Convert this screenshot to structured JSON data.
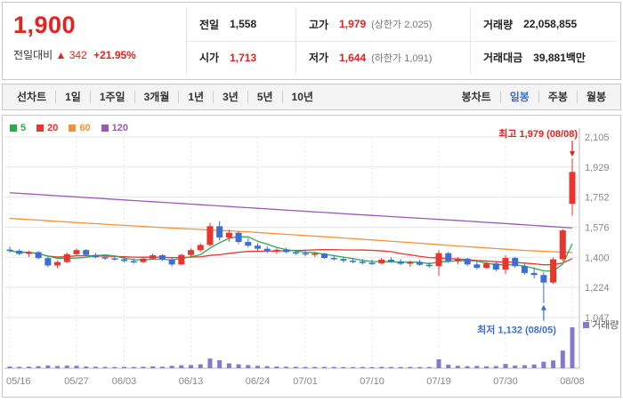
{
  "theme": {
    "red": "#e32222",
    "blue": "#3c6fd6"
  },
  "header": {
    "price": "1,900",
    "change_label": "전일대비",
    "change_arrow": "▲",
    "change_value": "342",
    "change_percent": "+21.95%",
    "stats": {
      "prev_label": "전일",
      "prev_value": "1,558",
      "high_label": "고가",
      "high_value": "1,979",
      "high_limit": "(상한가 2,025)",
      "volume_label": "거래량",
      "volume_value": "22,058,855",
      "open_label": "시가",
      "open_value": "1,713",
      "low_label": "저가",
      "low_value": "1,644",
      "low_limit": "(하한가 1,091)",
      "amount_label": "거래대금",
      "amount_value": "39,881백만"
    }
  },
  "toolbar": {
    "left": [
      "선차트",
      "1일",
      "1주일",
      "3개월",
      "1년",
      "3년",
      "5년",
      "10년"
    ],
    "right_label": "봉차트",
    "right": [
      "일봉",
      "주봉",
      "월봉"
    ],
    "selected": "일봉"
  },
  "legend": [
    {
      "label": "5",
      "color": "#2faa4a"
    },
    {
      "label": "20",
      "color": "#e8352d"
    },
    {
      "label": "60",
      "color": "#f39239"
    },
    {
      "label": "120",
      "color": "#9b59b6"
    }
  ],
  "chart_data": {
    "type": "candlestick",
    "y_ticks": [
      "2,105",
      "1,929",
      "1,752",
      "1,576",
      "1,400",
      "1,224",
      "1,047"
    ],
    "y_values": [
      2105,
      1929,
      1752,
      1576,
      1400,
      1224,
      1047
    ],
    "x_ticks": [
      {
        "label": "05/16",
        "index": 0
      },
      {
        "label": "05/27",
        "index": 7
      },
      {
        "label": "06/03",
        "index": 12
      },
      {
        "label": "06/13",
        "index": 19
      },
      {
        "label": "06/24",
        "index": 26
      },
      {
        "label": "07/01",
        "index": 31
      },
      {
        "label": "07/10",
        "index": 38
      },
      {
        "label": "07/19",
        "index": 45
      },
      {
        "label": "07/30",
        "index": 52
      },
      {
        "label": "08/08",
        "index": 59
      }
    ],
    "annotations": {
      "high": {
        "text": "최고 1,979 (08/08)",
        "index": 59,
        "price": 1979,
        "color": "#e32222"
      },
      "low": {
        "text": "최저 1,132 (08/05)",
        "index": 56,
        "price": 1132,
        "color": "#3c6fd6"
      }
    },
    "volume_legend": "거래량",
    "candles": [
      [
        "05/16",
        1445,
        1462,
        1428,
        1438,
        900000
      ],
      [
        "05/17",
        1438,
        1448,
        1412,
        1420,
        750000
      ],
      [
        "05/20",
        1420,
        1438,
        1402,
        1430,
        820000
      ],
      [
        "05/21",
        1430,
        1436,
        1388,
        1395,
        1100000
      ],
      [
        "05/22",
        1395,
        1402,
        1342,
        1352,
        1500000
      ],
      [
        "05/23",
        1352,
        1382,
        1336,
        1372,
        1200000
      ],
      [
        "05/24",
        1372,
        1428,
        1366,
        1418,
        1400000
      ],
      [
        "05/27",
        1418,
        1452,
        1408,
        1442,
        1300000
      ],
      [
        "05/28",
        1442,
        1448,
        1406,
        1414,
        900000
      ],
      [
        "05/29",
        1414,
        1426,
        1394,
        1400,
        800000
      ],
      [
        "05/30",
        1400,
        1416,
        1384,
        1394,
        700000
      ],
      [
        "05/31",
        1394,
        1410,
        1380,
        1388,
        650000
      ],
      [
        "06/03",
        1388,
        1404,
        1370,
        1378,
        720000
      ],
      [
        "06/04",
        1378,
        1394,
        1362,
        1372,
        680000
      ],
      [
        "06/05",
        1372,
        1400,
        1368,
        1392,
        760000
      ],
      [
        "06/07",
        1392,
        1422,
        1386,
        1412,
        980000
      ],
      [
        "06/10",
        1412,
        1418,
        1378,
        1388,
        850000
      ],
      [
        "06/11",
        1388,
        1398,
        1346,
        1358,
        1300000
      ],
      [
        "06/12",
        1358,
        1420,
        1352,
        1414,
        1600000
      ],
      [
        "06/13",
        1414,
        1452,
        1398,
        1442,
        1700000
      ],
      [
        "06/14",
        1442,
        1482,
        1430,
        1472,
        2100000
      ],
      [
        "06/17",
        1472,
        1602,
        1462,
        1582,
        5200000
      ],
      [
        "06/18",
        1582,
        1612,
        1498,
        1516,
        4300000
      ],
      [
        "06/19",
        1516,
        1562,
        1492,
        1544,
        2600000
      ],
      [
        "06/20",
        1544,
        1552,
        1478,
        1490,
        2100000
      ],
      [
        "06/21",
        1490,
        1512,
        1458,
        1468,
        1700000
      ],
      [
        "06/24",
        1468,
        1482,
        1438,
        1450,
        1300000
      ],
      [
        "06/25",
        1450,
        1464,
        1424,
        1434,
        1100000
      ],
      [
        "06/26",
        1434,
        1452,
        1420,
        1444,
        900000
      ],
      [
        "06/27",
        1444,
        1456,
        1424,
        1430,
        800000
      ],
      [
        "06/28",
        1430,
        1444,
        1414,
        1424,
        750000
      ],
      [
        "07/01",
        1424,
        1440,
        1406,
        1416,
        700000
      ],
      [
        "07/02",
        1416,
        1432,
        1402,
        1422,
        680000
      ],
      [
        "07/03",
        1422,
        1426,
        1390,
        1396,
        720000
      ],
      [
        "07/04",
        1396,
        1412,
        1380,
        1390,
        650000
      ],
      [
        "07/05",
        1390,
        1402,
        1370,
        1380,
        620000
      ],
      [
        "07/08",
        1380,
        1396,
        1364,
        1374,
        600000
      ],
      [
        "07/09",
        1374,
        1390,
        1358,
        1368,
        640000
      ],
      [
        "07/10",
        1368,
        1386,
        1354,
        1364,
        610000
      ],
      [
        "07/11",
        1364,
        1396,
        1358,
        1386,
        700000
      ],
      [
        "07/12",
        1386,
        1400,
        1368,
        1376,
        660000
      ],
      [
        "07/15",
        1376,
        1390,
        1354,
        1362,
        640000
      ],
      [
        "07/16",
        1362,
        1382,
        1344,
        1372,
        690000
      ],
      [
        "07/17",
        1372,
        1386,
        1350,
        1356,
        630000
      ],
      [
        "07/18",
        1356,
        1370,
        1338,
        1348,
        670000
      ],
      [
        "07/19",
        1348,
        1442,
        1292,
        1424,
        4800000
      ],
      [
        "07/22",
        1424,
        1432,
        1368,
        1378,
        1900000
      ],
      [
        "07/23",
        1378,
        1402,
        1360,
        1392,
        1300000
      ],
      [
        "07/24",
        1392,
        1396,
        1348,
        1358,
        1100000
      ],
      [
        "07/25",
        1358,
        1380,
        1328,
        1338,
        1250000
      ],
      [
        "07/26",
        1338,
        1372,
        1332,
        1364,
        1000000
      ],
      [
        "07/29",
        1364,
        1376,
        1318,
        1328,
        1150000
      ],
      [
        "07/30",
        1328,
        1412,
        1302,
        1396,
        2300000
      ],
      [
        "07/31",
        1396,
        1402,
        1338,
        1348,
        1400000
      ],
      [
        "08/01",
        1348,
        1362,
        1298,
        1308,
        1600000
      ],
      [
        "08/02",
        1308,
        1342,
        1276,
        1296,
        2000000
      ],
      [
        "08/05",
        1296,
        1312,
        1132,
        1252,
        3500000
      ],
      [
        "08/06",
        1252,
        1398,
        1244,
        1388,
        4200000
      ],
      [
        "08/07",
        1388,
        1566,
        1376,
        1558,
        9500000
      ],
      [
        "08/08",
        1713,
        1979,
        1644,
        1900,
        22058855
      ]
    ],
    "ma60_points": [
      [
        0,
        1628
      ],
      [
        8,
        1600
      ],
      [
        16,
        1574
      ],
      [
        24,
        1552
      ],
      [
        32,
        1524
      ],
      [
        40,
        1494
      ],
      [
        48,
        1462
      ],
      [
        54,
        1440
      ],
      [
        59,
        1428
      ]
    ],
    "ma120_points": [
      [
        0,
        1778
      ],
      [
        12,
        1736
      ],
      [
        24,
        1694
      ],
      [
        36,
        1652
      ],
      [
        48,
        1612
      ],
      [
        59,
        1572
      ]
    ],
    "colors": {
      "up": "#e8352d",
      "down": "#3c6fd6",
      "ma5": "#2faa4a",
      "ma20": "#e8352d",
      "ma60": "#f39239",
      "ma120": "#9b59b6",
      "volume": "#8678cd",
      "grid": "#e6e6e6",
      "axis": "#bbbbbb",
      "tick_text": "#888888"
    }
  }
}
